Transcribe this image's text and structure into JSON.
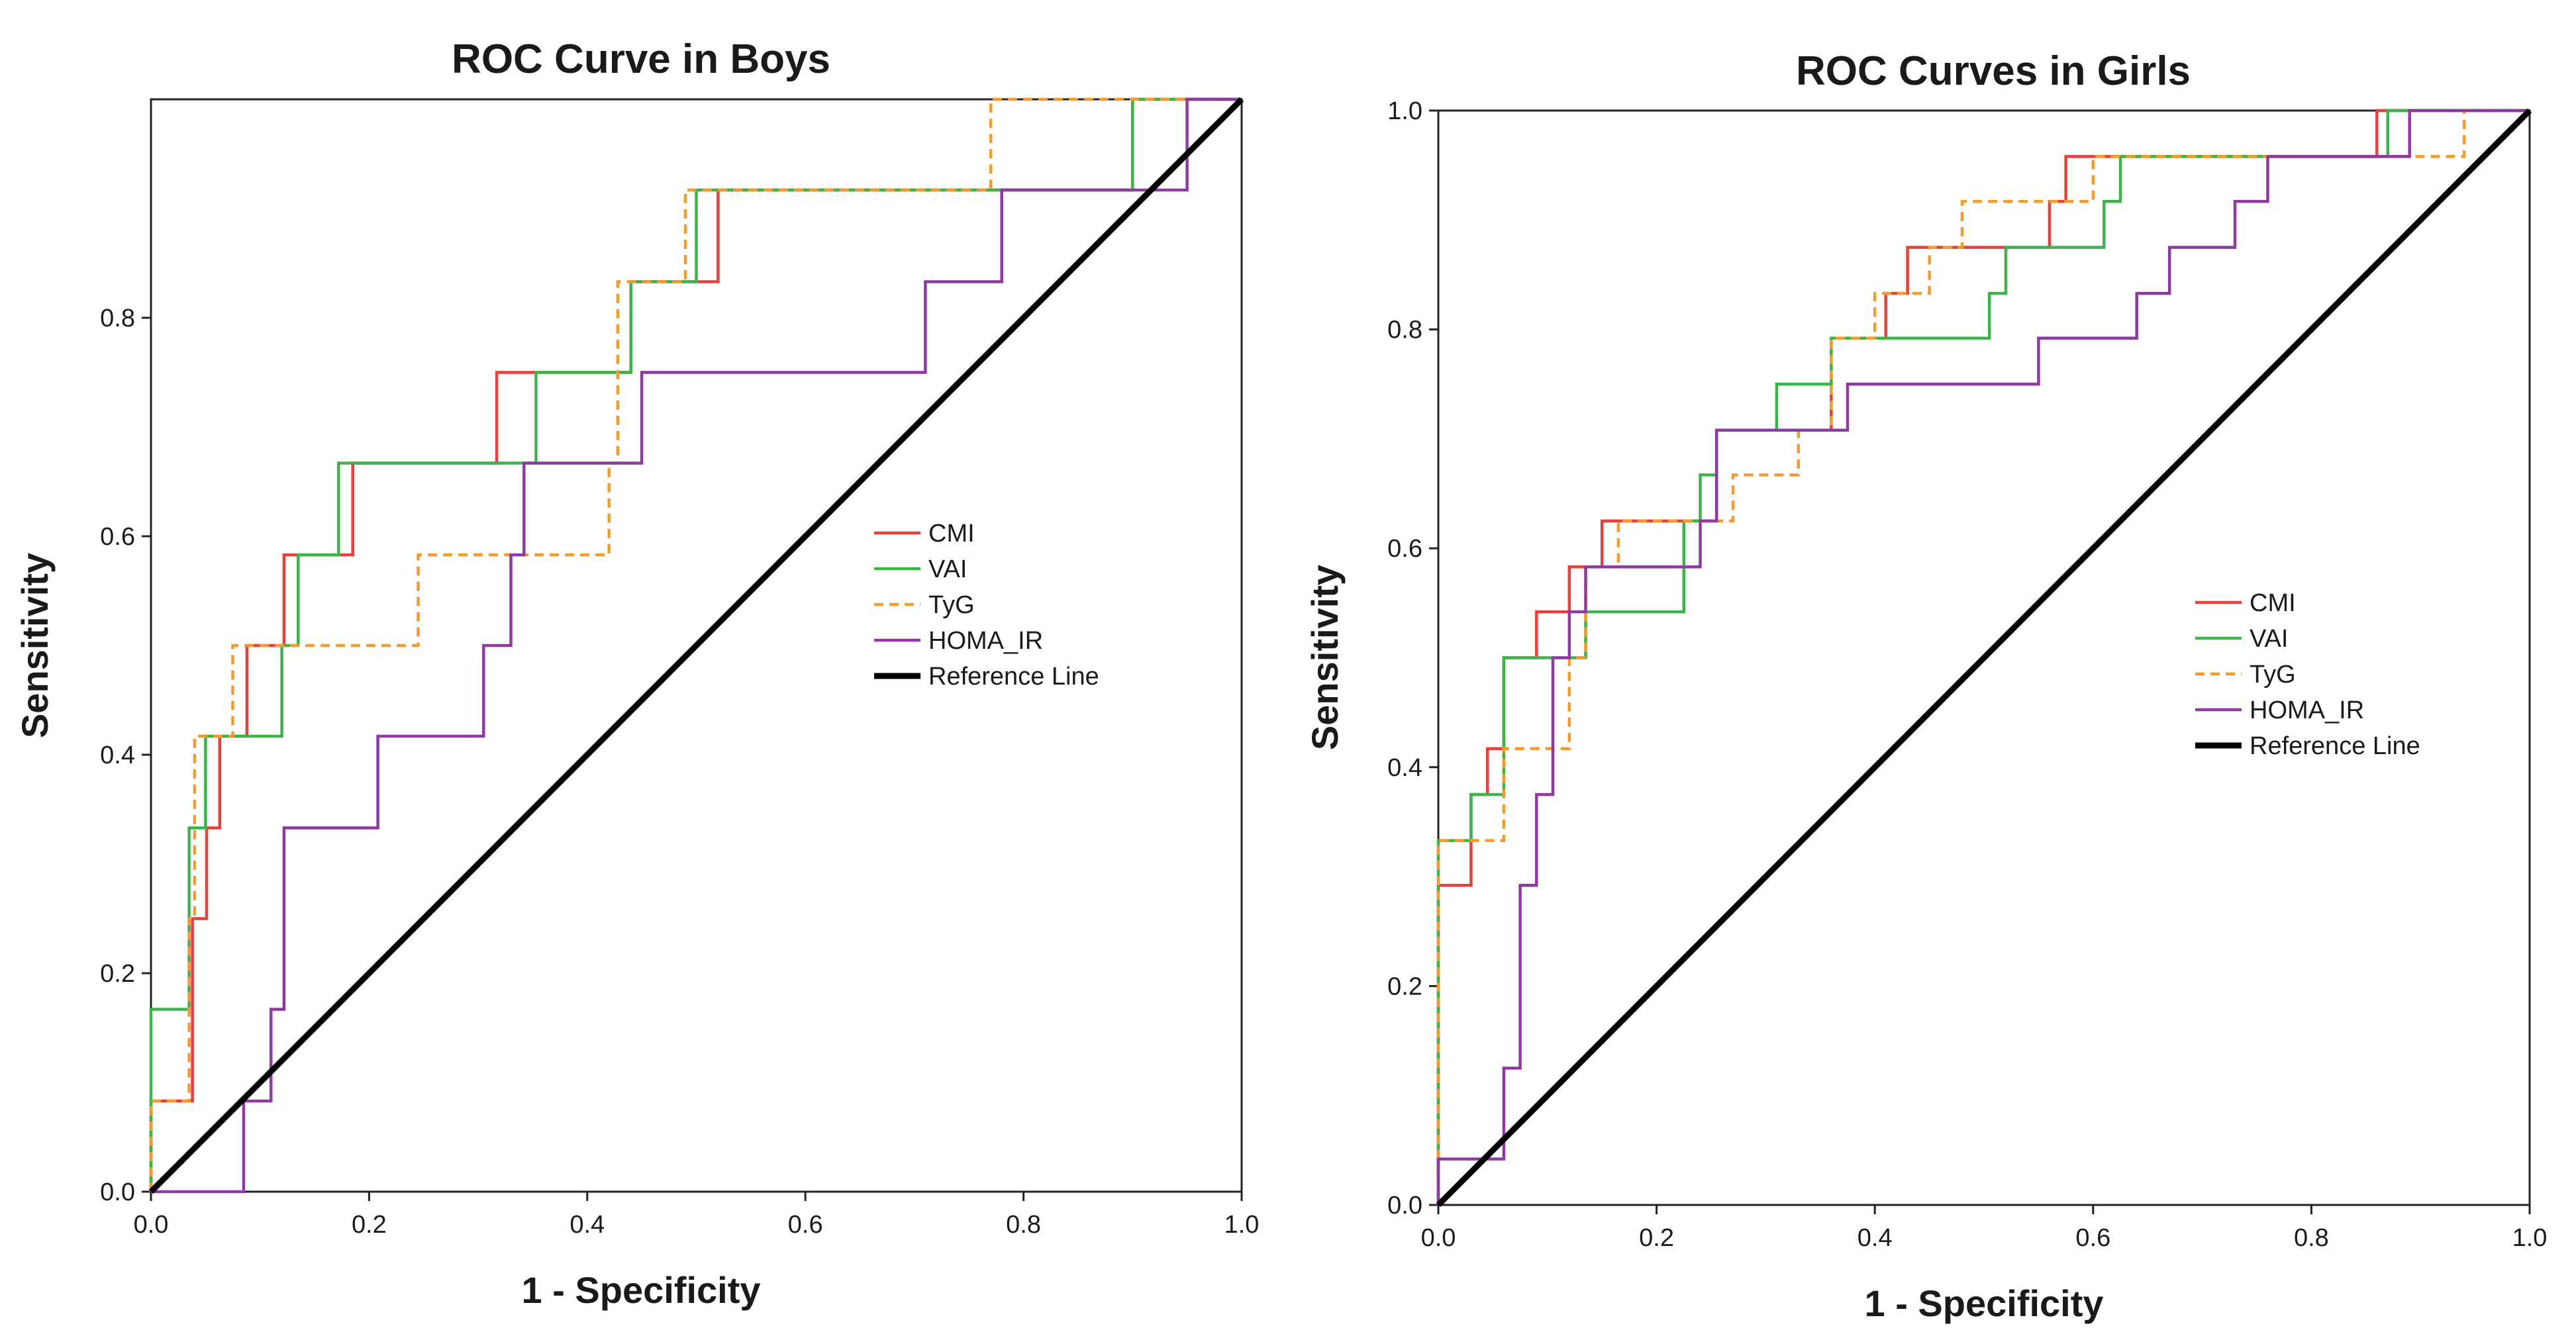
{
  "chart_data": [
    {
      "type": "line",
      "title": "ROC Curve in Boys",
      "xlabel": "1 - Specificity",
      "ylabel": "Sensitivity",
      "xlim": [
        0,
        1
      ],
      "ylim": [
        0,
        1
      ],
      "x_ticks": [
        "0.0",
        "0.2",
        "0.4",
        "0.6",
        "0.8",
        "1.0"
      ],
      "y_ticks": [
        "0.0",
        "0.2",
        "0.4",
        "0.6",
        "0.8"
      ],
      "legend_position": "center-right",
      "series": [
        {
          "name": "CMI",
          "color": "#e8403a",
          "dashed": false,
          "points": [
            [
              0,
              0
            ],
            [
              0,
              0.083
            ],
            [
              0.038,
              0.083
            ],
            [
              0.038,
              0.25
            ],
            [
              0.051,
              0.25
            ],
            [
              0.051,
              0.333
            ],
            [
              0.063,
              0.333
            ],
            [
              0.063,
              0.417
            ],
            [
              0.088,
              0.417
            ],
            [
              0.088,
              0.5
            ],
            [
              0.122,
              0.5
            ],
            [
              0.122,
              0.583
            ],
            [
              0.185,
              0.583
            ],
            [
              0.185,
              0.667
            ],
            [
              0.317,
              0.667
            ],
            [
              0.317,
              0.75
            ],
            [
              0.44,
              0.75
            ],
            [
              0.44,
              0.833
            ],
            [
              0.52,
              0.833
            ],
            [
              0.52,
              0.917
            ],
            [
              0.9,
              0.917
            ],
            [
              0.9,
              1.0
            ],
            [
              1.0,
              1.0
            ]
          ]
        },
        {
          "name": "VAI",
          "color": "#3cb44b",
          "dashed": false,
          "points": [
            [
              0,
              0
            ],
            [
              0,
              0.167
            ],
            [
              0.035,
              0.167
            ],
            [
              0.035,
              0.333
            ],
            [
              0.05,
              0.333
            ],
            [
              0.05,
              0.417
            ],
            [
              0.12,
              0.417
            ],
            [
              0.12,
              0.5
            ],
            [
              0.135,
              0.5
            ],
            [
              0.135,
              0.583
            ],
            [
              0.172,
              0.583
            ],
            [
              0.172,
              0.667
            ],
            [
              0.353,
              0.667
            ],
            [
              0.353,
              0.75
            ],
            [
              0.44,
              0.75
            ],
            [
              0.44,
              0.833
            ],
            [
              0.5,
              0.833
            ],
            [
              0.5,
              0.917
            ],
            [
              0.9,
              0.917
            ],
            [
              0.9,
              1.0
            ],
            [
              1.0,
              1.0
            ]
          ]
        },
        {
          "name": "TyG",
          "color": "#f39c2b",
          "dashed": true,
          "points": [
            [
              0,
              0
            ],
            [
              0,
              0.083
            ],
            [
              0.035,
              0.083
            ],
            [
              0.035,
              0.25
            ],
            [
              0.04,
              0.25
            ],
            [
              0.04,
              0.417
            ],
            [
              0.075,
              0.417
            ],
            [
              0.075,
              0.5
            ],
            [
              0.245,
              0.5
            ],
            [
              0.245,
              0.583
            ],
            [
              0.42,
              0.583
            ],
            [
              0.42,
              0.667
            ],
            [
              0.428,
              0.667
            ],
            [
              0.428,
              0.833
            ],
            [
              0.49,
              0.833
            ],
            [
              0.49,
              0.917
            ],
            [
              0.77,
              0.917
            ],
            [
              0.77,
              1.0
            ],
            [
              1.0,
              1.0
            ]
          ]
        },
        {
          "name": "HOMA_IR",
          "color": "#8e3aa0",
          "dashed": false,
          "points": [
            [
              0,
              0
            ],
            [
              0.085,
              0
            ],
            [
              0.085,
              0.083
            ],
            [
              0.11,
              0.083
            ],
            [
              0.11,
              0.167
            ],
            [
              0.122,
              0.167
            ],
            [
              0.122,
              0.333
            ],
            [
              0.208,
              0.333
            ],
            [
              0.208,
              0.417
            ],
            [
              0.305,
              0.417
            ],
            [
              0.305,
              0.5
            ],
            [
              0.33,
              0.5
            ],
            [
              0.33,
              0.583
            ],
            [
              0.342,
              0.583
            ],
            [
              0.342,
              0.667
            ],
            [
              0.45,
              0.667
            ],
            [
              0.45,
              0.75
            ],
            [
              0.71,
              0.75
            ],
            [
              0.71,
              0.833
            ],
            [
              0.78,
              0.833
            ],
            [
              0.78,
              0.917
            ],
            [
              0.95,
              0.917
            ],
            [
              0.95,
              1.0
            ],
            [
              1.0,
              1.0
            ]
          ]
        },
        {
          "name": "Reference Line",
          "color": "#000000",
          "dashed": false,
          "reference": true,
          "points": [
            [
              0,
              0
            ],
            [
              1,
              1
            ]
          ]
        }
      ]
    },
    {
      "type": "line",
      "title": "ROC Curves in Girls",
      "xlabel": "1 - Specificity",
      "ylabel": "Sensitivity",
      "xlim": [
        0,
        1
      ],
      "ylim": [
        0,
        1
      ],
      "x_ticks": [
        "0.0",
        "0.2",
        "0.4",
        "0.6",
        "0.8",
        "1.0"
      ],
      "y_ticks": [
        "0.0",
        "0.2",
        "0.4",
        "0.6",
        "0.8",
        "1.0"
      ],
      "legend_position": "center-right",
      "series": [
        {
          "name": "CMI",
          "color": "#e8403a",
          "dashed": false,
          "points": [
            [
              0,
              0
            ],
            [
              0,
              0.292
            ],
            [
              0.03,
              0.292
            ],
            [
              0.03,
              0.375
            ],
            [
              0.045,
              0.375
            ],
            [
              0.045,
              0.417
            ],
            [
              0.06,
              0.417
            ],
            [
              0.06,
              0.5
            ],
            [
              0.09,
              0.5
            ],
            [
              0.09,
              0.542
            ],
            [
              0.12,
              0.542
            ],
            [
              0.12,
              0.583
            ],
            [
              0.15,
              0.583
            ],
            [
              0.15,
              0.625
            ],
            [
              0.255,
              0.625
            ],
            [
              0.255,
              0.708
            ],
            [
              0.36,
              0.708
            ],
            [
              0.36,
              0.792
            ],
            [
              0.41,
              0.792
            ],
            [
              0.41,
              0.833
            ],
            [
              0.43,
              0.833
            ],
            [
              0.43,
              0.875
            ],
            [
              0.56,
              0.875
            ],
            [
              0.56,
              0.917
            ],
            [
              0.575,
              0.917
            ],
            [
              0.575,
              0.958
            ],
            [
              0.86,
              0.958
            ],
            [
              0.86,
              1.0
            ],
            [
              1.0,
              1.0
            ]
          ]
        },
        {
          "name": "VAI",
          "color": "#3cb44b",
          "dashed": false,
          "points": [
            [
              0,
              0
            ],
            [
              0,
              0.333
            ],
            [
              0.03,
              0.333
            ],
            [
              0.03,
              0.375
            ],
            [
              0.06,
              0.375
            ],
            [
              0.06,
              0.5
            ],
            [
              0.135,
              0.5
            ],
            [
              0.135,
              0.542
            ],
            [
              0.225,
              0.542
            ],
            [
              0.225,
              0.625
            ],
            [
              0.24,
              0.625
            ],
            [
              0.24,
              0.667
            ],
            [
              0.255,
              0.667
            ],
            [
              0.255,
              0.708
            ],
            [
              0.31,
              0.708
            ],
            [
              0.31,
              0.75
            ],
            [
              0.36,
              0.75
            ],
            [
              0.36,
              0.792
            ],
            [
              0.505,
              0.792
            ],
            [
              0.505,
              0.833
            ],
            [
              0.52,
              0.833
            ],
            [
              0.52,
              0.875
            ],
            [
              0.61,
              0.875
            ],
            [
              0.61,
              0.917
            ],
            [
              0.625,
              0.917
            ],
            [
              0.625,
              0.958
            ],
            [
              0.87,
              0.958
            ],
            [
              0.87,
              1.0
            ],
            [
              1.0,
              1.0
            ]
          ]
        },
        {
          "name": "TyG",
          "color": "#f39c2b",
          "dashed": true,
          "points": [
            [
              0,
              0
            ],
            [
              0,
              0.333
            ],
            [
              0.06,
              0.333
            ],
            [
              0.06,
              0.417
            ],
            [
              0.12,
              0.417
            ],
            [
              0.12,
              0.5
            ],
            [
              0.135,
              0.5
            ],
            [
              0.135,
              0.583
            ],
            [
              0.165,
              0.583
            ],
            [
              0.165,
              0.625
            ],
            [
              0.27,
              0.625
            ],
            [
              0.27,
              0.667
            ],
            [
              0.33,
              0.667
            ],
            [
              0.33,
              0.708
            ],
            [
              0.36,
              0.708
            ],
            [
              0.36,
              0.792
            ],
            [
              0.4,
              0.792
            ],
            [
              0.4,
              0.833
            ],
            [
              0.45,
              0.833
            ],
            [
              0.45,
              0.875
            ],
            [
              0.48,
              0.875
            ],
            [
              0.48,
              0.917
            ],
            [
              0.6,
              0.917
            ],
            [
              0.6,
              0.958
            ],
            [
              0.94,
              0.958
            ],
            [
              0.94,
              1.0
            ],
            [
              1.0,
              1.0
            ]
          ]
        },
        {
          "name": "HOMA_IR",
          "color": "#8e3aa0",
          "dashed": false,
          "points": [
            [
              0,
              0
            ],
            [
              0,
              0.042
            ],
            [
              0.06,
              0.042
            ],
            [
              0.06,
              0.125
            ],
            [
              0.075,
              0.125
            ],
            [
              0.075,
              0.292
            ],
            [
              0.09,
              0.292
            ],
            [
              0.09,
              0.375
            ],
            [
              0.105,
              0.375
            ],
            [
              0.105,
              0.5
            ],
            [
              0.12,
              0.5
            ],
            [
              0.12,
              0.542
            ],
            [
              0.135,
              0.542
            ],
            [
              0.135,
              0.583
            ],
            [
              0.24,
              0.583
            ],
            [
              0.24,
              0.625
            ],
            [
              0.255,
              0.625
            ],
            [
              0.255,
              0.708
            ],
            [
              0.375,
              0.708
            ],
            [
              0.375,
              0.75
            ],
            [
              0.55,
              0.75
            ],
            [
              0.55,
              0.792
            ],
            [
              0.64,
              0.792
            ],
            [
              0.64,
              0.833
            ],
            [
              0.67,
              0.833
            ],
            [
              0.67,
              0.875
            ],
            [
              0.73,
              0.875
            ],
            [
              0.73,
              0.917
            ],
            [
              0.76,
              0.917
            ],
            [
              0.76,
              0.958
            ],
            [
              0.89,
              0.958
            ],
            [
              0.89,
              1.0
            ],
            [
              1.0,
              1.0
            ]
          ]
        },
        {
          "name": "Reference Line",
          "color": "#000000",
          "dashed": false,
          "reference": true,
          "points": [
            [
              0,
              0
            ],
            [
              1,
              1
            ]
          ]
        }
      ]
    }
  ]
}
